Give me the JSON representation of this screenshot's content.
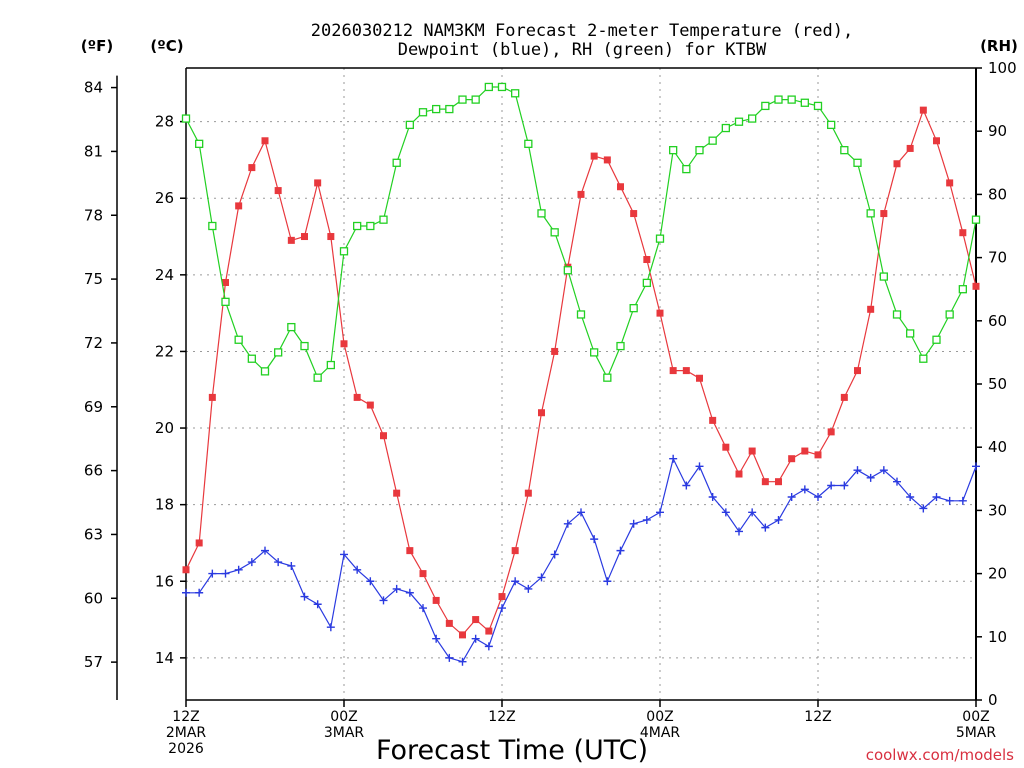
{
  "chart_data": {
    "type": "line",
    "title_line1": "2026030212 NAM3KM Forecast 2-meter Temperature (red),",
    "title_line2": "Dewpoint (blue), RH (green) for KTBW",
    "xlabel": "Forecast Time (UTC)",
    "credit": "coolwx.com/models",
    "unit_labels": {
      "fahrenheit": "(ºF)",
      "celsius": "(ºC)",
      "rh": "(RH)"
    },
    "x_hours": [
      0,
      1,
      2,
      3,
      4,
      5,
      6,
      7,
      8,
      9,
      10,
      11,
      12,
      13,
      14,
      15,
      16,
      17,
      18,
      19,
      20,
      21,
      22,
      23,
      24,
      25,
      26,
      27,
      28,
      29,
      30,
      31,
      32,
      33,
      34,
      35,
      36,
      37,
      38,
      39,
      40,
      41,
      42,
      43,
      44,
      45,
      46,
      47,
      48,
      49,
      50,
      51,
      52,
      53,
      54,
      55,
      56,
      57,
      58,
      59,
      60
    ],
    "xlim": [
      0,
      60
    ],
    "x_ticks": [
      {
        "hour": 0,
        "lines": [
          "12Z",
          "2MAR",
          "2026"
        ]
      },
      {
        "hour": 12,
        "lines": [
          "00Z",
          "3MAR"
        ]
      },
      {
        "hour": 24,
        "lines": [
          "12Z"
        ]
      },
      {
        "hour": 36,
        "lines": [
          "00Z",
          "4MAR"
        ]
      },
      {
        "hour": 48,
        "lines": [
          "12Z"
        ]
      },
      {
        "hour": 60,
        "lines": [
          "00Z",
          "5MAR"
        ]
      }
    ],
    "celsius_axis": {
      "ylim": [
        12.9,
        29.4
      ],
      "ticks": [
        14,
        16,
        18,
        20,
        22,
        24,
        26,
        28
      ]
    },
    "fahrenheit_axis": {
      "ticks": [
        57,
        60,
        63,
        66,
        69,
        72,
        75,
        78,
        81,
        84
      ]
    },
    "rh_axis": {
      "ylim": [
        0,
        100
      ],
      "ticks": [
        0,
        10,
        20,
        30,
        40,
        50,
        60,
        70,
        80,
        90,
        100
      ]
    },
    "series": [
      {
        "name": "2-meter Temperature",
        "color": "#e8383d",
        "axis": "celsius",
        "marker": "filled-square",
        "values": [
          16.3,
          17.0,
          20.8,
          23.8,
          25.8,
          26.8,
          27.5,
          26.2,
          24.9,
          25.0,
          26.4,
          25.0,
          22.2,
          20.8,
          20.6,
          19.8,
          18.3,
          16.8,
          16.2,
          15.5,
          14.9,
          14.6,
          15.0,
          14.7,
          15.6,
          16.8,
          18.3,
          20.4,
          22.0,
          24.2,
          26.1,
          27.1,
          27.0,
          26.3,
          25.6,
          24.4,
          23.0,
          21.5,
          21.5,
          21.3,
          20.2,
          19.5,
          18.8,
          19.4,
          18.6,
          18.6,
          19.2,
          19.4,
          19.3,
          19.9,
          20.8,
          21.5,
          23.1,
          25.6,
          26.9,
          27.3,
          28.3,
          27.5,
          26.4,
          25.1,
          23.7
        ]
      },
      {
        "name": "Dewpoint",
        "color": "#2a3ae0",
        "axis": "celsius",
        "marker": "plus",
        "values": [
          15.7,
          15.7,
          16.2,
          16.2,
          16.3,
          16.5,
          16.8,
          16.5,
          16.4,
          15.6,
          15.4,
          14.8,
          16.7,
          16.3,
          16.0,
          15.5,
          15.8,
          15.7,
          15.3,
          14.5,
          14.0,
          13.9,
          14.5,
          14.3,
          15.3,
          16.0,
          15.8,
          16.1,
          16.7,
          17.5,
          17.8,
          17.1,
          16.0,
          16.8,
          17.5,
          17.6,
          17.8,
          19.2,
          18.5,
          19.0,
          18.2,
          17.8,
          17.3,
          17.8,
          17.4,
          17.6,
          18.2,
          18.4,
          18.2,
          18.5,
          18.5,
          18.9,
          18.7,
          18.9,
          18.6,
          18.2,
          17.9,
          18.2,
          18.1,
          18.1,
          19.0
        ]
      },
      {
        "name": "RH",
        "color": "#22d022",
        "axis": "rh",
        "marker": "open-square",
        "values": [
          92,
          88,
          75,
          63,
          57,
          54,
          52,
          55,
          59,
          56,
          51,
          53,
          71,
          75,
          75,
          76,
          85,
          91,
          93,
          93.5,
          93.5,
          95,
          95,
          97,
          97,
          96,
          88,
          77,
          74,
          68,
          61,
          55,
          51,
          56,
          62,
          66,
          73,
          87,
          84,
          87,
          88.5,
          90.5,
          91.5,
          92,
          94,
          95,
          95,
          94.5,
          94,
          91,
          87,
          85,
          77,
          67,
          61,
          58,
          54,
          57,
          61,
          65,
          76
        ]
      }
    ]
  }
}
